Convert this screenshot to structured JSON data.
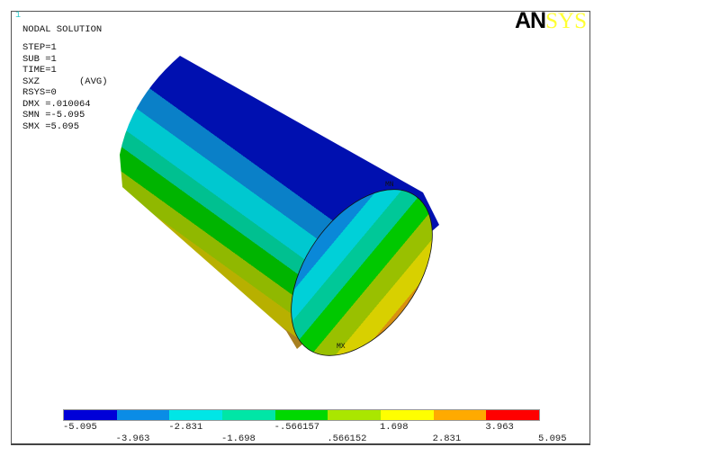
{
  "window_number": "1",
  "info": {
    "title": "NODAL SOLUTION",
    "lines": [
      "STEP=1",
      "SUB =1",
      "TIME=1",
      "SXZ       (AVG)",
      "RSYS=0",
      "DMX =.010064",
      "SMN =-5.095",
      "SMX =5.095"
    ]
  },
  "logo": {
    "part1": "AN",
    "part2": "SYS"
  },
  "markers": {
    "min": "MN",
    "max": "MX"
  },
  "legend": {
    "colors": [
      "#0000d8",
      "#0a8ce6",
      "#00e6e6",
      "#00e6a6",
      "#00d800",
      "#aae600",
      "#ffff00",
      "#ffaa00",
      "#ff0000"
    ],
    "labels": [
      "-5.095",
      "-3.963",
      "-2.831",
      "-1.698",
      "-.566157",
      ".566152",
      "1.698",
      "2.831",
      "3.963",
      "5.095"
    ]
  }
}
